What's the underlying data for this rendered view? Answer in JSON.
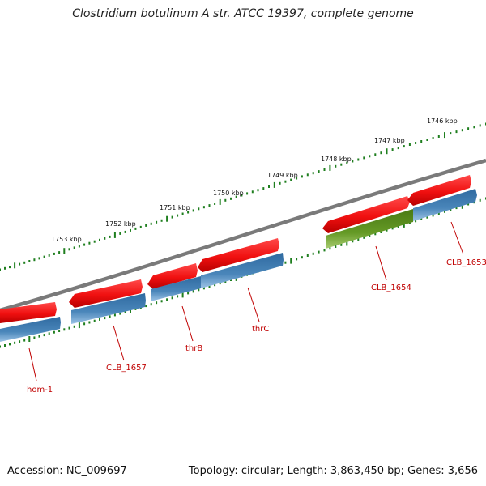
{
  "title": "Clostridium botulinum A str. ATCC 19397, complete genome",
  "footer": {
    "accession": "Accession: NC_009697",
    "summary": "Topology: circular; Length: 3,863,450 bp; Genes: 3,656"
  },
  "colors": {
    "backbone": "#7f7f7f",
    "gene_red": "#f01010",
    "cds_blue": "#3d79ae",
    "cds_green": "#5a8a1e",
    "tick_green": "#1e7e1e",
    "label_red": "#c00000"
  },
  "scale": {
    "kbp_labels": [
      "1753 kbp",
      "1752 kbp",
      "1751 kbp",
      "1750 kbp",
      "1749 kbp",
      "1748 kbp",
      "1747 kbp",
      "1746 kbp"
    ]
  },
  "genes": [
    {
      "label": "hom-1"
    },
    {
      "label": "CLB_1657"
    },
    {
      "label": "thrB"
    },
    {
      "label": "thrC"
    },
    {
      "label": "CLB_1654"
    },
    {
      "label": "CLB_1653"
    }
  ]
}
